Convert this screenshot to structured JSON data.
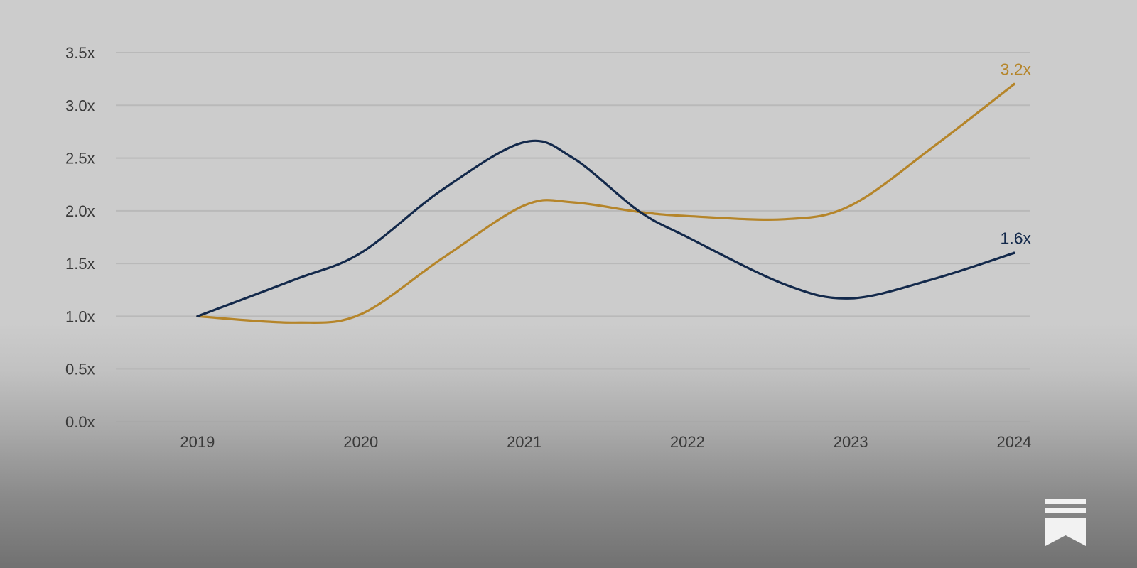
{
  "chart_data": {
    "type": "line",
    "categories": [
      "2019",
      "2020",
      "2021",
      "2022",
      "2023",
      "2024"
    ],
    "x": [
      2019,
      2019.6,
      2020,
      2020.5,
      2021,
      2021.3,
      2021.7,
      2022,
      2022.6,
      2023,
      2023.5,
      2024
    ],
    "series": [
      {
        "color": "#b5852a",
        "values": [
          1.0,
          0.94,
          1.02,
          1.55,
          2.05,
          2.08,
          1.99,
          1.95,
          1.92,
          2.05,
          2.6,
          3.2
        ],
        "end_label": "3.2x"
      },
      {
        "color": "#13294b",
        "values": [
          1.0,
          1.35,
          1.6,
          2.2,
          2.65,
          2.5,
          2.0,
          1.75,
          1.3,
          1.17,
          1.35,
          1.6
        ],
        "end_label": "1.6x"
      }
    ],
    "ylim": [
      0,
      3.5
    ],
    "yticks": [
      0,
      0.5,
      1.0,
      1.5,
      2.0,
      2.5,
      3.0,
      3.5
    ],
    "ytick_labels": [
      "0.0x",
      "0.5x",
      "1.0x",
      "1.5x",
      "2.0x",
      "2.5x",
      "3.0x",
      "3.5x"
    ],
    "xlim": [
      2018.5,
      2024.1
    ],
    "grid": true,
    "legend": "none",
    "xlabel": "",
    "ylabel": "",
    "title": ""
  },
  "brand": {
    "logo_icon": "bookmark-icon",
    "logo_color": "#f2f2f2"
  }
}
